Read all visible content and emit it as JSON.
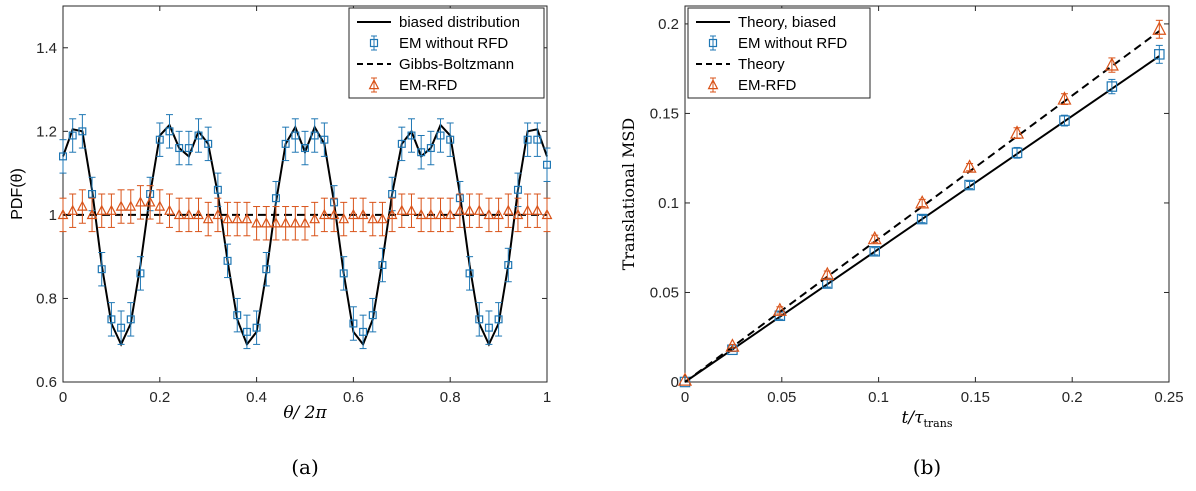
{
  "chart_data": [
    {
      "type": "line",
      "panel_label": "(a)",
      "xlabel": "θ/ 2π",
      "ylabel": "PDF(θ)",
      "xlim": [
        0,
        1
      ],
      "ylim": [
        0.6,
        1.5
      ],
      "xticks": [
        "0",
        "0.2",
        "0.4",
        "0.6",
        "0.8",
        "1"
      ],
      "yticks": [
        "0.6",
        "0.8",
        "1",
        "1.2",
        "1.4"
      ],
      "legend_position": "top-right",
      "legend": [
        "biased distribution",
        "EM without RFD",
        "Gibbs-Boltzmann",
        "EM-RFD"
      ],
      "series": [
        {
          "name": "biased distribution",
          "style": "solid",
          "color": "#000000",
          "x": [
            0,
            0.02,
            0.04,
            0.06,
            0.08,
            0.1,
            0.12,
            0.14,
            0.16,
            0.18,
            0.2,
            0.22,
            0.24,
            0.26,
            0.28,
            0.3,
            0.32,
            0.34,
            0.36,
            0.38,
            0.4,
            0.42,
            0.44,
            0.46,
            0.48,
            0.5,
            0.52,
            0.54,
            0.56,
            0.58,
            0.6,
            0.62,
            0.64,
            0.66,
            0.68,
            0.7,
            0.72,
            0.74,
            0.76,
            0.78,
            0.8,
            0.82,
            0.84,
            0.86,
            0.88,
            0.9,
            0.92,
            0.94,
            0.96,
            0.98,
            1
          ],
          "y": [
            1.14,
            1.205,
            1.2,
            1.06,
            0.88,
            0.74,
            0.69,
            0.74,
            0.88,
            1.05,
            1.19,
            1.215,
            1.16,
            1.14,
            1.2,
            1.17,
            1.05,
            0.89,
            0.75,
            0.69,
            0.72,
            0.86,
            1.03,
            1.17,
            1.21,
            1.15,
            1.21,
            1.17,
            1.03,
            0.86,
            0.72,
            0.69,
            0.75,
            0.89,
            1.05,
            1.17,
            1.2,
            1.14,
            1.16,
            1.215,
            1.19,
            1.05,
            0.88,
            0.74,
            0.69,
            0.74,
            0.88,
            1.06,
            1.2,
            1.205,
            1.14
          ]
        },
        {
          "name": "EM without RFD",
          "style": "square markers with error bars",
          "color": "#1f77b4",
          "error": 0.04,
          "x": [
            0,
            0.02,
            0.04,
            0.06,
            0.08,
            0.1,
            0.12,
            0.14,
            0.16,
            0.18,
            0.2,
            0.22,
            0.24,
            0.26,
            0.28,
            0.3,
            0.32,
            0.34,
            0.36,
            0.38,
            0.4,
            0.42,
            0.44,
            0.46,
            0.48,
            0.5,
            0.52,
            0.54,
            0.56,
            0.58,
            0.6,
            0.62,
            0.64,
            0.66,
            0.68,
            0.7,
            0.72,
            0.74,
            0.76,
            0.78,
            0.8,
            0.82,
            0.84,
            0.86,
            0.88,
            0.9,
            0.92,
            0.94,
            0.96,
            0.98,
            1
          ],
          "y": [
            1.14,
            1.19,
            1.2,
            1.05,
            0.87,
            0.75,
            0.73,
            0.75,
            0.86,
            1.05,
            1.18,
            1.2,
            1.16,
            1.16,
            1.19,
            1.17,
            1.06,
            0.89,
            0.76,
            0.72,
            0.73,
            0.87,
            1.04,
            1.17,
            1.19,
            1.16,
            1.19,
            1.18,
            1.03,
            0.86,
            0.74,
            0.72,
            0.76,
            0.88,
            1.05,
            1.17,
            1.19,
            1.15,
            1.16,
            1.19,
            1.18,
            1.04,
            0.86,
            0.75,
            0.73,
            0.75,
            0.88,
            1.06,
            1.18,
            1.18,
            1.12
          ]
        },
        {
          "name": "Gibbs-Boltzmann",
          "style": "dashed",
          "color": "#000000",
          "x": [
            0,
            1
          ],
          "y": [
            1,
            1
          ]
        },
        {
          "name": "EM-RFD",
          "style": "triangle markers with error bars",
          "color": "#d95319",
          "error": 0.04,
          "x": [
            0,
            0.02,
            0.04,
            0.06,
            0.08,
            0.1,
            0.12,
            0.14,
            0.16,
            0.18,
            0.2,
            0.22,
            0.24,
            0.26,
            0.28,
            0.3,
            0.32,
            0.34,
            0.36,
            0.38,
            0.4,
            0.42,
            0.44,
            0.46,
            0.48,
            0.5,
            0.52,
            0.54,
            0.56,
            0.58,
            0.6,
            0.62,
            0.64,
            0.66,
            0.68,
            0.7,
            0.72,
            0.74,
            0.76,
            0.78,
            0.8,
            0.82,
            0.84,
            0.86,
            0.88,
            0.9,
            0.92,
            0.94,
            0.96,
            0.98,
            1
          ],
          "y": [
            1.0,
            1.01,
            1.02,
            1.0,
            1.01,
            1.01,
            1.02,
            1.02,
            1.03,
            1.03,
            1.02,
            1.01,
            1.0,
            1.0,
            1.0,
            0.99,
            1.0,
            0.99,
            0.99,
            0.99,
            0.98,
            0.98,
            0.98,
            0.98,
            0.98,
            0.98,
            0.99,
            1.0,
            1.0,
            0.99,
            1.0,
            1.0,
            0.99,
            0.99,
            1.0,
            1.01,
            1.01,
            1.0,
            1.0,
            1.0,
            1.0,
            1.01,
            1.01,
            1.01,
            1.0,
            1.0,
            1.01,
            1.0,
            1.01,
            1.01,
            1.0
          ]
        }
      ]
    },
    {
      "type": "line",
      "panel_label": "(b)",
      "xlabel": "t/τ",
      "xlabel_subscript": "trans",
      "ylabel": "Translational MSD",
      "xlim": [
        0,
        0.25
      ],
      "ylim": [
        0,
        0.21
      ],
      "xticks": [
        "0",
        "0.05",
        "0.1",
        "0.15",
        "0.2",
        "0.25"
      ],
      "yticks": [
        "0",
        "0.05",
        "0.1",
        "0.15",
        "0.2"
      ],
      "legend_position": "top-left",
      "legend": [
        "Theory, biased",
        "EM without RFD",
        "Theory",
        "EM-RFD"
      ],
      "series": [
        {
          "name": "Theory, biased",
          "style": "solid",
          "color": "#000000",
          "x": [
            0,
            0.245
          ],
          "y": [
            0,
            0.182
          ]
        },
        {
          "name": "EM without RFD",
          "style": "square markers with error bars",
          "color": "#1f77b4",
          "x": [
            0,
            0.0245,
            0.049,
            0.0735,
            0.098,
            0.1225,
            0.147,
            0.1715,
            0.196,
            0.2205,
            0.245
          ],
          "y": [
            0,
            0.018,
            0.037,
            0.055,
            0.073,
            0.091,
            0.11,
            0.128,
            0.146,
            0.165,
            0.183
          ],
          "error": [
            0,
            0.001,
            0.002,
            0.002,
            0.002,
            0.002,
            0.002,
            0.003,
            0.003,
            0.004,
            0.005
          ]
        },
        {
          "name": "Theory",
          "style": "dashed",
          "color": "#000000",
          "x": [
            0,
            0.245
          ],
          "y": [
            0,
            0.196
          ]
        },
        {
          "name": "EM-RFD",
          "style": "triangle markers with error bars",
          "color": "#d95319",
          "x": [
            0,
            0.0245,
            0.049,
            0.0735,
            0.098,
            0.1225,
            0.147,
            0.1715,
            0.196,
            0.2205,
            0.245
          ],
          "y": [
            0.001,
            0.02,
            0.04,
            0.06,
            0.08,
            0.1,
            0.12,
            0.139,
            0.158,
            0.177,
            0.197
          ],
          "error": [
            0,
            0.001,
            0.002,
            0.002,
            0.002,
            0.002,
            0.002,
            0.003,
            0.003,
            0.004,
            0.005
          ]
        }
      ]
    }
  ]
}
